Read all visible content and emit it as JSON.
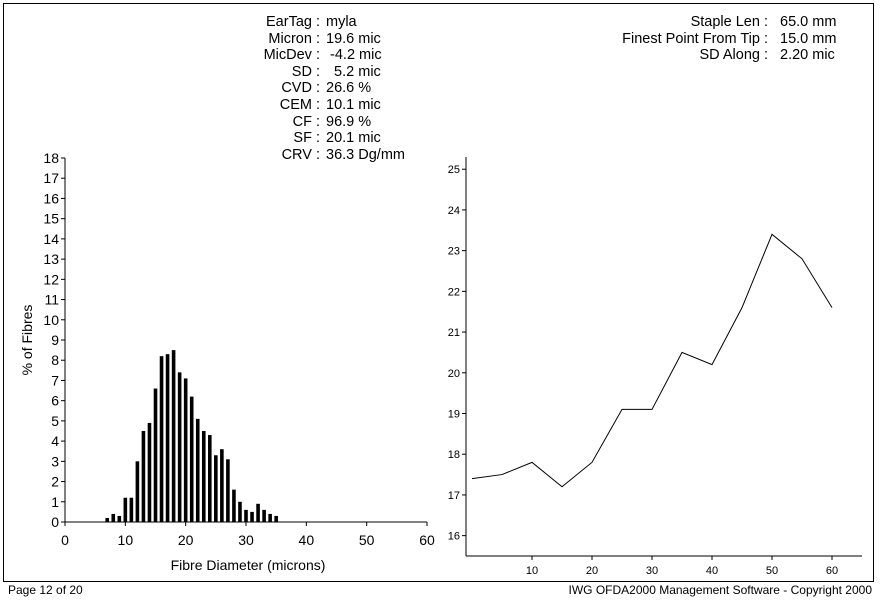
{
  "stats_left": [
    {
      "label": "EarTag :",
      "value": "myla"
    },
    {
      "label": "Micron :",
      "value": "19.6 mic"
    },
    {
      "label": "MicDev :",
      "value": " -4.2 mic"
    },
    {
      "label": "SD :",
      "value": "  5.2 mic"
    },
    {
      "label": "CVD :",
      "value": "26.6 %"
    },
    {
      "label": "CEM :",
      "value": "10.1 mic"
    },
    {
      "label": "CF :",
      "value": "96.9 %"
    },
    {
      "label": "SF :",
      "value": "20.1 mic"
    },
    {
      "label": "CRV :",
      "value": "36.3 Dg/mm"
    }
  ],
  "stats_right": [
    {
      "label": "Staple Len :",
      "value": "65.0 mm"
    },
    {
      "label": "Finest Point From Tip :",
      "value": "15.0 mm"
    },
    {
      "label": "SD Along :",
      "value": "2.20 mic"
    }
  ],
  "footer": {
    "page": "Page 12 of 20",
    "copyright": "IWG OFDA2000 Management Software - Copyright 2000"
  },
  "chart_data": [
    {
      "type": "bar",
      "title": "",
      "xlabel": "Fibre Diameter (microns)",
      "ylabel": "% of Fibres",
      "xlim": [
        0,
        60
      ],
      "ylim": [
        0,
        18
      ],
      "xticks": [
        0,
        10,
        20,
        30,
        40,
        50,
        60
      ],
      "yticks": [
        0,
        1,
        2,
        3,
        4,
        5,
        6,
        7,
        8,
        9,
        10,
        11,
        12,
        13,
        14,
        15,
        16,
        17,
        18
      ],
      "x": [
        7,
        8,
        9,
        10,
        11,
        12,
        13,
        14,
        15,
        16,
        17,
        18,
        19,
        20,
        21,
        22,
        23,
        24,
        25,
        26,
        27,
        28,
        29,
        30,
        31,
        32,
        33,
        34,
        35
      ],
      "values": [
        0.2,
        0.4,
        0.3,
        1.2,
        1.2,
        3.0,
        4.5,
        4.9,
        6.6,
        8.2,
        8.3,
        8.5,
        7.4,
        7.1,
        6.2,
        5.1,
        4.5,
        4.3,
        3.3,
        3.6,
        3.1,
        1.6,
        1.0,
        0.6,
        0.5,
        0.9,
        0.6,
        0.4,
        0.3
      ]
    },
    {
      "type": "line",
      "title": "",
      "xlabel": "",
      "ylabel": "",
      "xlim": [
        -1,
        65
      ],
      "ylim": [
        15.5,
        25.3
      ],
      "xticks": [
        10,
        20,
        30,
        40,
        50,
        60
      ],
      "yticks": [
        16,
        17,
        18,
        19,
        20,
        21,
        22,
        23,
        24,
        25
      ],
      "x": [
        0,
        5,
        10,
        15,
        20,
        25,
        30,
        35,
        40,
        45,
        50,
        55,
        60
      ],
      "values": [
        17.4,
        17.5,
        17.8,
        17.2,
        17.8,
        19.1,
        19.1,
        20.5,
        20.2,
        21.6,
        23.4,
        22.8,
        21.6
      ]
    }
  ]
}
